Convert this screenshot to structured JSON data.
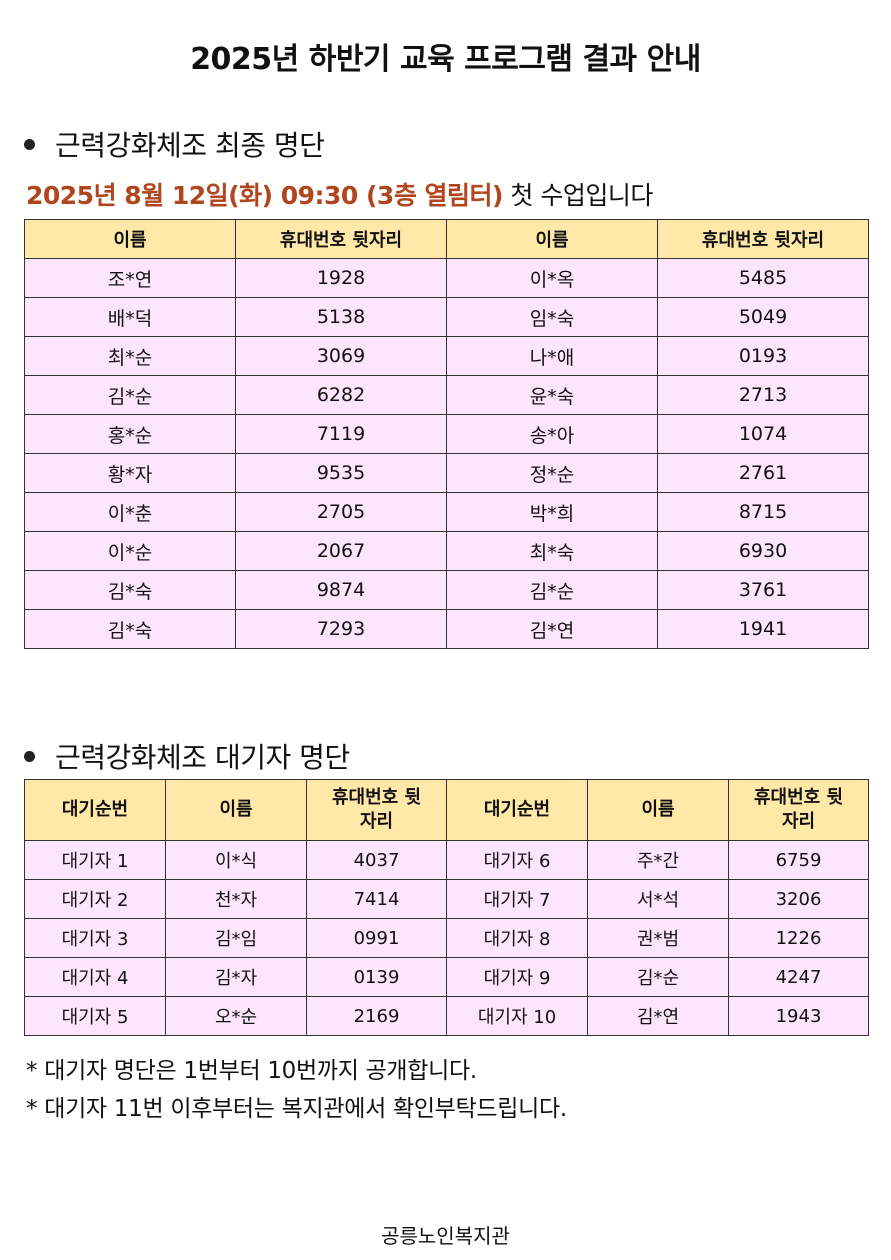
{
  "title": "2025년 하반기 교육 프로그램 결과 안내",
  "final_section": {
    "heading": "근력강화체조 최종 명단",
    "date_highlight": "2025년 8월 12일(화) 09:30 (3층 열림터)",
    "date_rest": " 첫 수업입니다",
    "headers": [
      "이름",
      "휴대번호 뒷자리",
      "이름",
      "휴대번호 뒷자리"
    ],
    "rows": [
      [
        "조*연",
        "1928",
        "이*옥",
        "5485"
      ],
      [
        "배*덕",
        "5138",
        "임*숙",
        "5049"
      ],
      [
        "최*순",
        "3069",
        "나*애",
        "0193"
      ],
      [
        "김*순",
        "6282",
        "윤*숙",
        "2713"
      ],
      [
        "홍*순",
        "7119",
        "송*아",
        "1074"
      ],
      [
        "황*자",
        "9535",
        "정*순",
        "2761"
      ],
      [
        "이*춘",
        "2705",
        "박*희",
        "8715"
      ],
      [
        "이*순",
        "2067",
        "최*숙",
        "6930"
      ],
      [
        "김*숙",
        "9874",
        "김*순",
        "3761"
      ],
      [
        "김*숙",
        "7293",
        "김*연",
        "1941"
      ]
    ]
  },
  "wait_section": {
    "heading": "근력강화체조 대기자 명단",
    "headers": [
      "대기순번",
      "이름",
      "휴대번호 뒷자리",
      "대기순번",
      "이름",
      "휴대번호 뒷자리"
    ],
    "rows": [
      [
        "대기자 1",
        "이*식",
        "4037",
        "대기자 6",
        "주*간",
        "6759"
      ],
      [
        "대기자 2",
        "천*자",
        "7414",
        "대기자 7",
        "서*석",
        "3206"
      ],
      [
        "대기자 3",
        "김*임",
        "0991",
        "대기자 8",
        "권*범",
        "1226"
      ],
      [
        "대기자 4",
        "김*자",
        "0139",
        "대기자 9",
        "김*순",
        "4247"
      ],
      [
        "대기자 5",
        "오*순",
        "2169",
        "대기자 10",
        "김*연",
        "1943"
      ]
    ]
  },
  "notes": [
    "* 대기자 명단은 1번부터 10번까지 공개합니다.",
    "* 대기자 11번 이후부터는 복지관에서 확인부탁드립니다."
  ],
  "footer": "공릉노인복지관",
  "colors": {
    "header_bg": "#ffe8a8",
    "cell_bg": "#fde6fd",
    "highlight_text": "#b0451e"
  }
}
